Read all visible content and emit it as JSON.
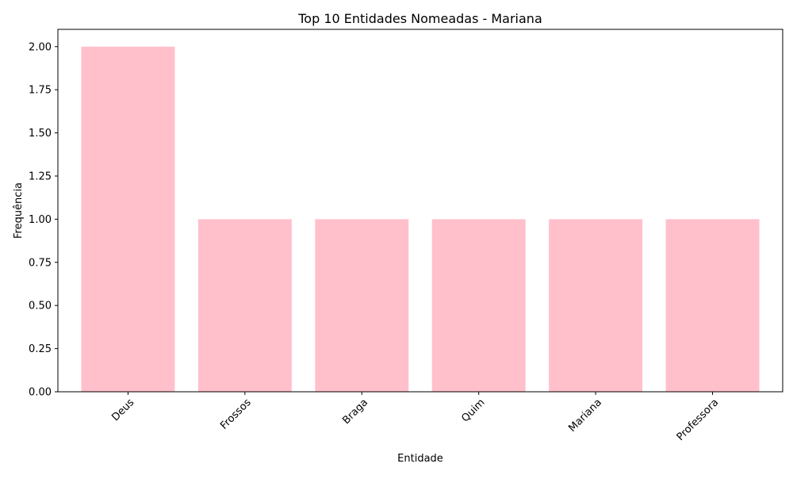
{
  "chart_data": {
    "type": "bar",
    "title": "Top 10 Entidades Nomeadas - Mariana",
    "xlabel": "Entidade",
    "ylabel": "Frequência",
    "categories": [
      "Deus",
      "Frossos",
      "Braga",
      "Quim",
      "Mariana",
      "Professora"
    ],
    "values": [
      2,
      1,
      1,
      1,
      1,
      1
    ],
    "ylim": [
      0,
      2.1
    ],
    "yticks": [
      "0.00",
      "0.25",
      "0.50",
      "0.75",
      "1.00",
      "1.25",
      "1.50",
      "1.75",
      "2.00"
    ],
    "bar_color": "#ffc0cb",
    "grid": false,
    "legend": false
  }
}
